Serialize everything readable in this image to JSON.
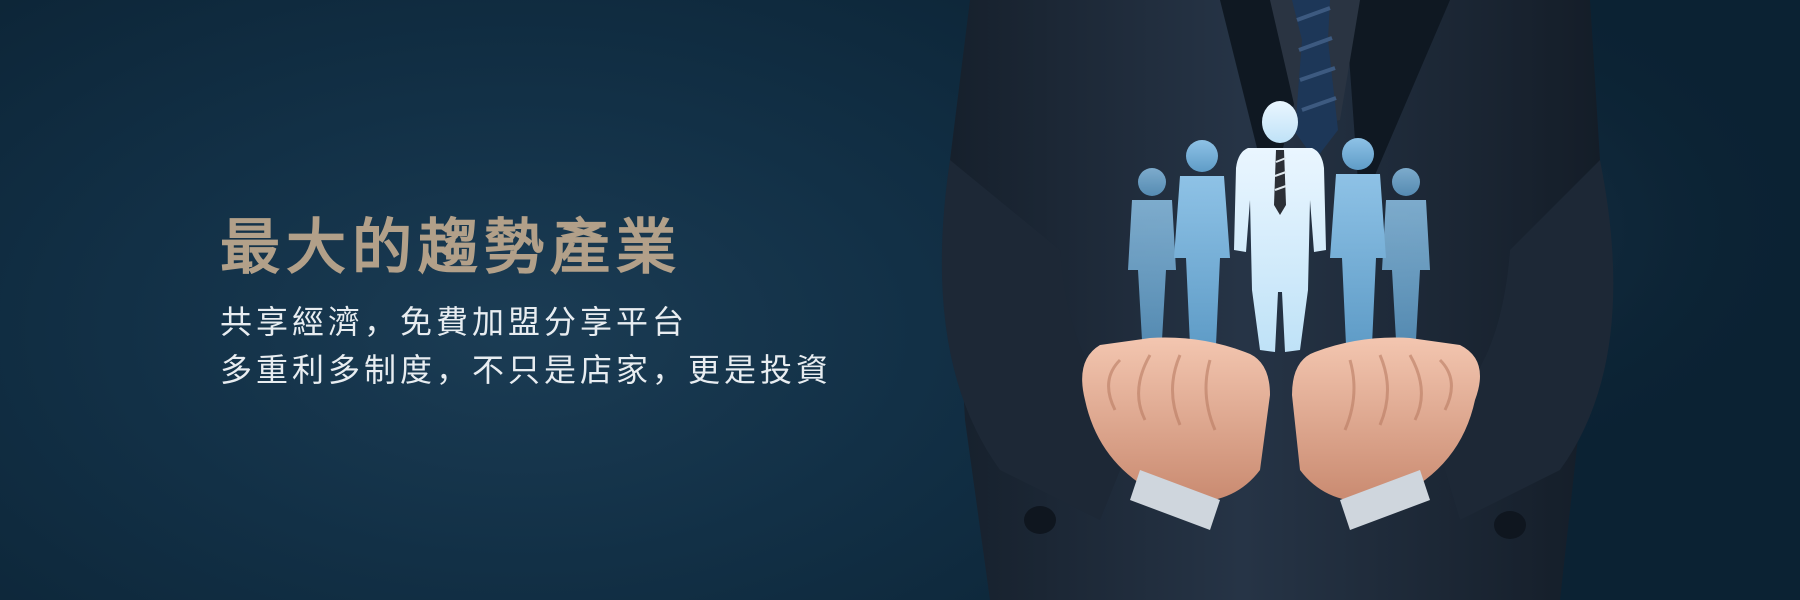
{
  "banner": {
    "headline": "最大的趨勢產業",
    "subline_1": "共享經濟，免費加盟分享平台",
    "subline_2": "多重利多制度，不只是店家，更是投資"
  },
  "colors": {
    "background": "#123046",
    "headline": "#b2a089",
    "subtext": "#e8edf1",
    "figure": "#d7ecf8"
  },
  "illustration": {
    "icon": "businessman-holding-people-icon",
    "description_icons": [
      "suit-icon",
      "tie-icon",
      "hands-icon",
      "people-group-icon"
    ]
  }
}
